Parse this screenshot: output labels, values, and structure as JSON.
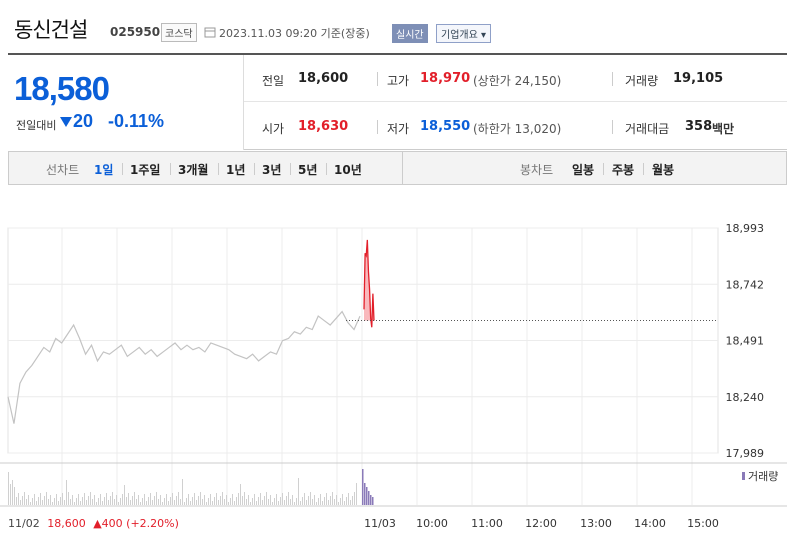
{
  "header": {
    "stock_name": "동신건설",
    "stock_code": "025950",
    "market": "코스닥",
    "datetime": "2023.11.03 09:20 기준(장중)",
    "realtime_label": "실시간",
    "overview_label": "기업개요 ▾"
  },
  "price": {
    "current": "18,580",
    "change_label": "전일대비",
    "change_value": "20",
    "change_pct": "-0.11%",
    "direction": "down"
  },
  "stats": {
    "prev_close_label": "전일",
    "prev_close": "18,600",
    "high_label": "고가",
    "high": "18,970",
    "upper_limit": "(상한가 24,150)",
    "volume_label": "거래량",
    "volume": "19,105",
    "open_label": "시가",
    "open": "18,630",
    "low_label": "저가",
    "low": "18,550",
    "lower_limit": "(하한가 13,020)",
    "amount_label": "거래대금",
    "amount": "358",
    "amount_unit": "백만"
  },
  "tabs": {
    "line_chart_label": "선차트",
    "line_periods": [
      "1일",
      "1주일",
      "3개월",
      "1년",
      "3년",
      "5년",
      "10년"
    ],
    "candle_chart_label": "봉차트",
    "candle_periods": [
      "일봉",
      "주봉",
      "월봉"
    ],
    "active": "1일"
  },
  "colors": {
    "accent_blue": "#0b5fd8",
    "up_red": "#e21f2a",
    "volume_purple": "#8a7ab8"
  },
  "chart_data": {
    "type": "line",
    "y_ticks": [
      "18,993",
      "18,742",
      "18,491",
      "18,240",
      "17,989"
    ],
    "ylim": [
      17989,
      18993
    ],
    "x_tick_labels": [
      "11/03",
      "10:00",
      "11:00",
      "12:00",
      "13:00",
      "14:00",
      "15:00"
    ],
    "volume_label": "거래량",
    "prev_day_label": "11/02",
    "prev_day_close": "18,600",
    "prev_day_change": "▲400 (+2.20%)",
    "prev_day_series": {
      "name": "11/02",
      "values": [
        18240,
        18120,
        18300,
        18350,
        18380,
        18420,
        18460,
        18440,
        18500,
        18480,
        18520,
        18560,
        18500,
        18430,
        18470,
        18400,
        18440,
        18430,
        18450,
        18470,
        18420,
        18440,
        18460,
        18430,
        18450,
        18420,
        18440,
        18460,
        18480,
        18450,
        18470,
        18450,
        18460,
        18440,
        18480,
        18470,
        18460,
        18450,
        18430,
        18420,
        18410,
        18430,
        18400,
        18420,
        18440,
        18430,
        18490,
        18500,
        18530,
        18520,
        18550,
        18540,
        18600,
        18580,
        18560,
        18590,
        18620,
        18570,
        18540,
        18600
      ]
    },
    "today_series": {
      "name": "11/03",
      "values": [
        18630,
        18880,
        18870,
        18940,
        18800,
        18720,
        18590,
        18550,
        18700,
        18580
      ]
    },
    "ref_line": 18580
  }
}
